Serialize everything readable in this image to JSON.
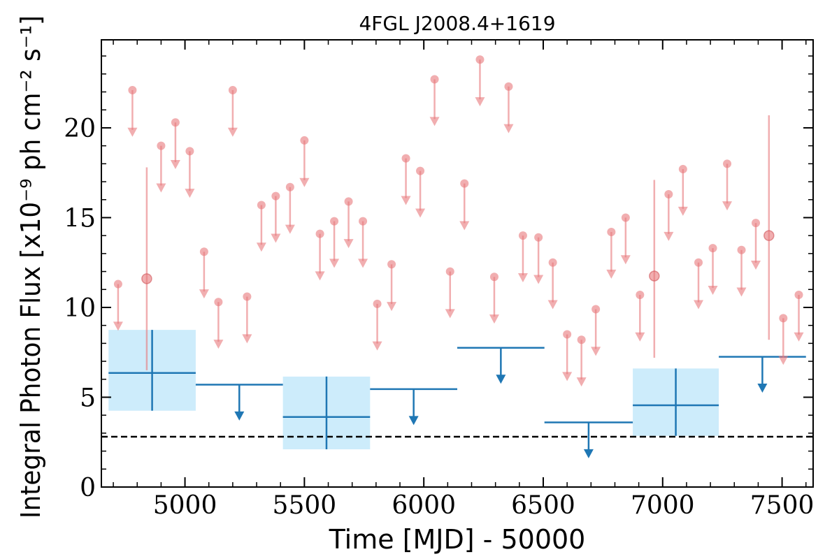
{
  "chart_data": {
    "type": "scatter",
    "title": "4FGL J2008.4+1619",
    "xlabel": "Time [MJD] - 50000",
    "ylabel": "Integral Photon Flux [x10⁻⁹ ph cm⁻² s⁻¹]",
    "xlim": [
      4650,
      7630
    ],
    "ylim": [
      0,
      24.9
    ],
    "xticks": [
      5000,
      5500,
      6000,
      6500,
      7000,
      7500
    ],
    "yticks": [
      0,
      5,
      10,
      15,
      20
    ],
    "reference_line_y": 2.8,
    "colors": {
      "short_bins": "#e8787c",
      "long_bins": "#1f77b4",
      "long_bins_fill": "#cdecfb",
      "reference": "#000000"
    },
    "long_bins": {
      "detections": [
        {
          "x_start": 4680,
          "x_end": 5045,
          "y": 6.35,
          "y_low": 4.25,
          "y_high": 8.75
        },
        {
          "x_start": 5410,
          "x_end": 5775,
          "y": 3.9,
          "y_low": 2.1,
          "y_high": 6.15
        },
        {
          "x_start": 6875,
          "x_end": 7235,
          "y": 4.55,
          "y_low": 2.85,
          "y_high": 6.6
        }
      ],
      "upper_limits": [
        {
          "x_start": 5045,
          "x_end": 5410,
          "y": 5.7
        },
        {
          "x_start": 5775,
          "x_end": 6140,
          "y": 5.45
        },
        {
          "x_start": 6140,
          "x_end": 6505,
          "y": 7.75
        },
        {
          "x_start": 6505,
          "x_end": 6875,
          "y": 3.6
        },
        {
          "x_start": 7235,
          "x_end": 7600,
          "y": 7.25
        }
      ]
    },
    "short_bins": {
      "detections": [
        {
          "x": 4840,
          "y": 11.6,
          "y_low": 6.5,
          "y_high": 17.8
        },
        {
          "x": 6965,
          "y": 11.75,
          "y_low": 7.2,
          "y_high": 17.1
        },
        {
          "x": 7445,
          "y": 14.0,
          "y_low": 8.2,
          "y_high": 20.7
        }
      ],
      "upper_limits": [
        {
          "x": 4720,
          "y": 11.3
        },
        {
          "x": 4780,
          "y": 22.1
        },
        {
          "x": 4900,
          "y": 19.0
        },
        {
          "x": 4960,
          "y": 20.3
        },
        {
          "x": 5020,
          "y": 18.7
        },
        {
          "x": 5080,
          "y": 13.1
        },
        {
          "x": 5140,
          "y": 10.3
        },
        {
          "x": 5200,
          "y": 22.1
        },
        {
          "x": 5260,
          "y": 10.6
        },
        {
          "x": 5320,
          "y": 15.7
        },
        {
          "x": 5380,
          "y": 16.2
        },
        {
          "x": 5440,
          "y": 16.7
        },
        {
          "x": 5500,
          "y": 19.3
        },
        {
          "x": 5565,
          "y": 14.1
        },
        {
          "x": 5625,
          "y": 14.8
        },
        {
          "x": 5685,
          "y": 15.9
        },
        {
          "x": 5745,
          "y": 14.8
        },
        {
          "x": 5805,
          "y": 10.2
        },
        {
          "x": 5865,
          "y": 12.4
        },
        {
          "x": 5925,
          "y": 18.3
        },
        {
          "x": 5985,
          "y": 17.6
        },
        {
          "x": 6045,
          "y": 22.7
        },
        {
          "x": 6110,
          "y": 12.0
        },
        {
          "x": 6170,
          "y": 16.9
        },
        {
          "x": 6235,
          "y": 23.8
        },
        {
          "x": 6295,
          "y": 11.7
        },
        {
          "x": 6355,
          "y": 22.3
        },
        {
          "x": 6415,
          "y": 14.0
        },
        {
          "x": 6480,
          "y": 13.9
        },
        {
          "x": 6540,
          "y": 12.5
        },
        {
          "x": 6600,
          "y": 8.5
        },
        {
          "x": 6660,
          "y": 8.2
        },
        {
          "x": 6720,
          "y": 9.9
        },
        {
          "x": 6785,
          "y": 14.2
        },
        {
          "x": 6845,
          "y": 15.0
        },
        {
          "x": 6905,
          "y": 10.7
        },
        {
          "x": 7025,
          "y": 16.3
        },
        {
          "x": 7085,
          "y": 17.7
        },
        {
          "x": 7150,
          "y": 12.5
        },
        {
          "x": 7210,
          "y": 13.3
        },
        {
          "x": 7270,
          "y": 18.0
        },
        {
          "x": 7330,
          "y": 13.2
        },
        {
          "x": 7390,
          "y": 14.7
        },
        {
          "x": 7505,
          "y": 9.4
        },
        {
          "x": 7570,
          "y": 10.7
        }
      ]
    }
  }
}
